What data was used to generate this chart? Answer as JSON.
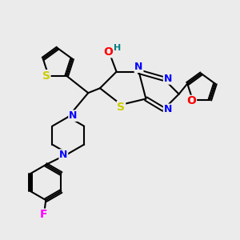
{
  "background_color": "#EBEBEB",
  "bond_color": "#000000",
  "atom_colors": {
    "N": "#0000FF",
    "O": "#FF0000",
    "S": "#CCCC00",
    "F": "#FF00FF",
    "H": "#008080",
    "C": "#000000"
  },
  "figsize": [
    3.0,
    3.0
  ],
  "dpi": 100
}
